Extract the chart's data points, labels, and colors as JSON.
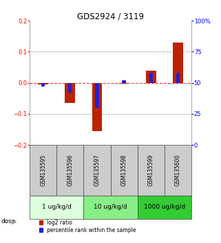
{
  "title": "GDS2924 / 3119",
  "samples": [
    "GSM135595",
    "GSM135596",
    "GSM135597",
    "GSM135598",
    "GSM135599",
    "GSM135600"
  ],
  "log2_ratio": [
    -0.005,
    -0.065,
    -0.155,
    -0.002,
    0.04,
    0.13
  ],
  "percentile_rank_raw": [
    47,
    42,
    30,
    52,
    58,
    58
  ],
  "ylim_left": [
    -0.2,
    0.2
  ],
  "ylim_right": [
    0,
    100
  ],
  "yticks_left": [
    -0.2,
    -0.1,
    0.0,
    0.1,
    0.2
  ],
  "yticks_right": [
    0,
    25,
    50,
    75,
    100
  ],
  "yticklabels_right": [
    "0",
    "25",
    "50",
    "75",
    "100%"
  ],
  "red_color": "#bb2200",
  "blue_color": "#2222cc",
  "dose_groups": [
    {
      "label": "1 ug/kg/d",
      "samples": 2,
      "color": "#ddffdd"
    },
    {
      "label": "10 ug/kg/d",
      "samples": 2,
      "color": "#88ee88"
    },
    {
      "label": "1000 ug/kg/d",
      "samples": 2,
      "color": "#33cc33"
    }
  ],
  "sample_box_color": "#cccccc",
  "legend_red": "log2 ratio",
  "legend_blue": "percentile rank within the sample",
  "dose_label": "dose",
  "zero_line_color": "#ee3333",
  "dotted_line_color": "#444444",
  "background_color": "#ffffff"
}
